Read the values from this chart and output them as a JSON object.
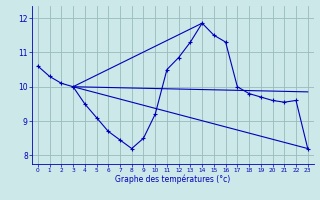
{
  "xlabel": "Graphe des températures (°c)",
  "background_color": "#cce8e8",
  "line_color": "#0000bb",
  "grid_color": "#99bbbb",
  "xlim": [
    -0.5,
    23.5
  ],
  "ylim": [
    7.75,
    12.35
  ],
  "xticks": [
    0,
    1,
    2,
    3,
    4,
    5,
    6,
    7,
    8,
    9,
    10,
    11,
    12,
    13,
    14,
    15,
    16,
    17,
    18,
    19,
    20,
    21,
    22,
    23
  ],
  "yticks": [
    8,
    9,
    10,
    11,
    12
  ],
  "series": [
    {
      "x": [
        0,
        1,
        2,
        3,
        4,
        5,
        6,
        7,
        8,
        9,
        10,
        11,
        12,
        13,
        14,
        15,
        16,
        17,
        18,
        19,
        20,
        21,
        22,
        23
      ],
      "y": [
        10.6,
        10.3,
        10.1,
        10.0,
        9.5,
        9.1,
        8.7,
        8.45,
        8.2,
        8.5,
        9.2,
        10.5,
        10.85,
        11.3,
        11.85,
        11.5,
        11.3,
        10.0,
        9.8,
        9.7,
        9.6,
        9.55,
        9.6,
        8.2
      ],
      "marker": true
    },
    {
      "x": [
        3,
        23
      ],
      "y": [
        10.0,
        8.2
      ],
      "marker": false
    },
    {
      "x": [
        3,
        23
      ],
      "y": [
        10.0,
        9.85
      ],
      "marker": false
    },
    {
      "x": [
        3,
        14
      ],
      "y": [
        10.0,
        11.85
      ],
      "marker": false
    }
  ]
}
